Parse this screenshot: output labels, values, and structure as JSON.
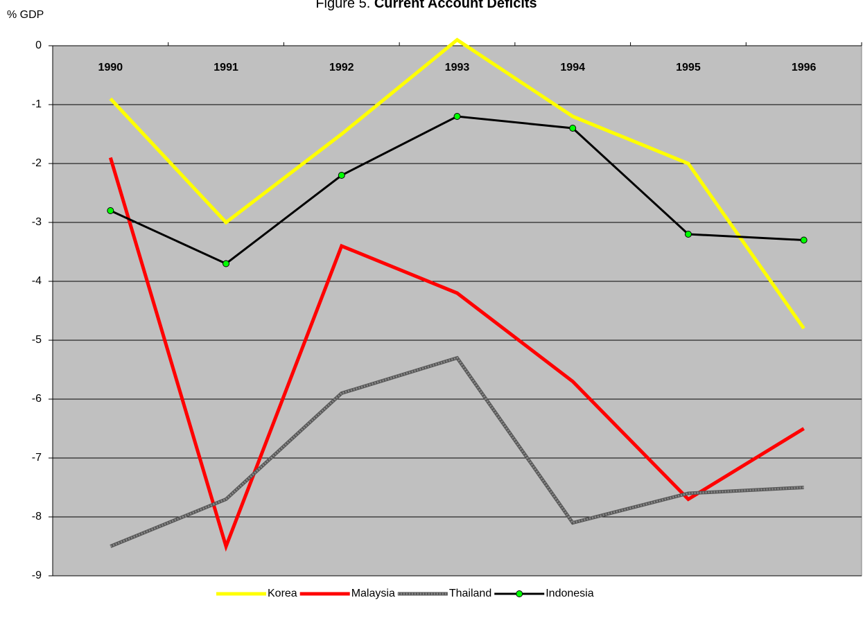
{
  "chart_data": {
    "type": "line",
    "title": [
      "Figure 5.",
      "Current Account Deficits"
    ],
    "y_label": "% GDP",
    "categories": [
      "1990",
      "1991",
      "1992",
      "1993",
      "1994",
      "1995",
      "1996"
    ],
    "series": [
      {
        "name": "Korea",
        "color": "#ffff00",
        "values": [
          -0.9,
          -3.0,
          -1.5,
          0.1,
          -1.2,
          -2.0,
          -4.8
        ]
      },
      {
        "name": "Malaysia",
        "color": "#ff0000",
        "values": [
          -1.9,
          -8.5,
          -3.4,
          -4.2,
          -5.7,
          -7.7,
          -6.5
        ]
      },
      {
        "name": "Thailand",
        "color": "#555555",
        "line_style": "striped",
        "values": [
          -8.5,
          -7.7,
          -5.9,
          -5.3,
          -8.1,
          -7.6,
          -7.5
        ]
      },
      {
        "name": "Indonesia",
        "color": "#000000",
        "marker_color": "#00ff00",
        "values": [
          -2.8,
          -3.7,
          -2.2,
          -1.2,
          -1.4,
          -3.2,
          -3.3
        ]
      }
    ],
    "ylim": [
      -9,
      0.1
    ],
    "yticks": [
      0,
      -1,
      -2,
      -3,
      -4,
      -5,
      -6,
      -7,
      -8,
      -9
    ],
    "grid": true,
    "plot_background": "#c0c0c0",
    "legend": "bottom"
  }
}
